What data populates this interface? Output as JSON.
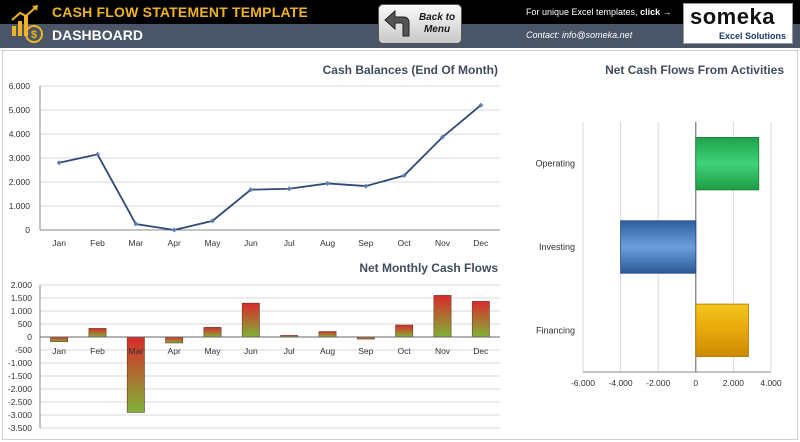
{
  "header": {
    "title": "CASH FLOW STATEMENT TEMPLATE",
    "section": "DASHBOARD",
    "back_line1": "Back to",
    "back_line2": "Menu",
    "promo_prefix": "For unique Excel templates, ",
    "promo_link": "click →",
    "contact": "Contact: info@someka.net",
    "brand_name": "someka",
    "brand_sub": "Excel Solutions",
    "colors": {
      "title": "#f0b323",
      "bar_top": "#000000",
      "bar_bottom": "#4a5568"
    }
  },
  "chart_data": [
    {
      "id": "cash-balances",
      "type": "line",
      "title": "Cash Balances (End Of Month)",
      "categories": [
        "Jan",
        "Feb",
        "Mar",
        "Apr",
        "May",
        "Jun",
        "Jul",
        "Aug",
        "Sep",
        "Oct",
        "Nov",
        "Dec"
      ],
      "values": [
        2800,
        3150,
        250,
        0,
        380,
        1680,
        1720,
        1940,
        1830,
        2270,
        3870,
        5200
      ],
      "ylim": [
        0,
        6000
      ],
      "yticks": [
        0,
        1000,
        2000,
        3000,
        4000,
        5000,
        6000
      ],
      "ytick_labels": [
        "0",
        "1.000",
        "2.000",
        "3.000",
        "4.000",
        "5.000",
        "6.000"
      ],
      "grid": true,
      "color": "#2e4a78"
    },
    {
      "id": "net-monthly",
      "type": "bar",
      "title": "Net Monthly Cash Flows",
      "categories": [
        "Jan",
        "Feb",
        "Mar",
        "Apr",
        "May",
        "Jun",
        "Jul",
        "Aug",
        "Sep",
        "Oct",
        "Nov",
        "Dec"
      ],
      "values": [
        -180,
        330,
        -2900,
        -230,
        370,
        1300,
        60,
        210,
        -80,
        460,
        1600,
        1370
      ],
      "ylim": [
        -3500,
        2000
      ],
      "yticks": [
        -3500,
        -3000,
        -2500,
        -2000,
        -1500,
        -1000,
        -500,
        0,
        500,
        1000,
        1500,
        2000
      ],
      "ytick_labels": [
        "-3.500",
        "-3.000",
        "-2.500",
        "-2.000",
        "-1.500",
        "-1.000",
        "-500",
        "0",
        "500",
        "1.000",
        "1.500",
        "2.000"
      ],
      "grid": true,
      "colors": {
        "top": "#d92b2b",
        "bottom": "#7fb236"
      }
    },
    {
      "id": "activities",
      "type": "bar",
      "orientation": "horizontal",
      "title": "Net Cash Flows From Activities",
      "categories": [
        "Operating",
        "Investing",
        "Financing"
      ],
      "values": [
        3350,
        -4000,
        2800
      ],
      "xlim": [
        -6000,
        4000
      ],
      "xticks": [
        -6000,
        -4000,
        -2000,
        0,
        2000,
        4000
      ],
      "xtick_labels": [
        "-6.000",
        "-4.000",
        "-2.000",
        "0",
        "2.000",
        "4.000"
      ],
      "grid": true,
      "colors": [
        "#22b24c",
        "#3f79c0",
        "#e8b00e"
      ]
    }
  ]
}
